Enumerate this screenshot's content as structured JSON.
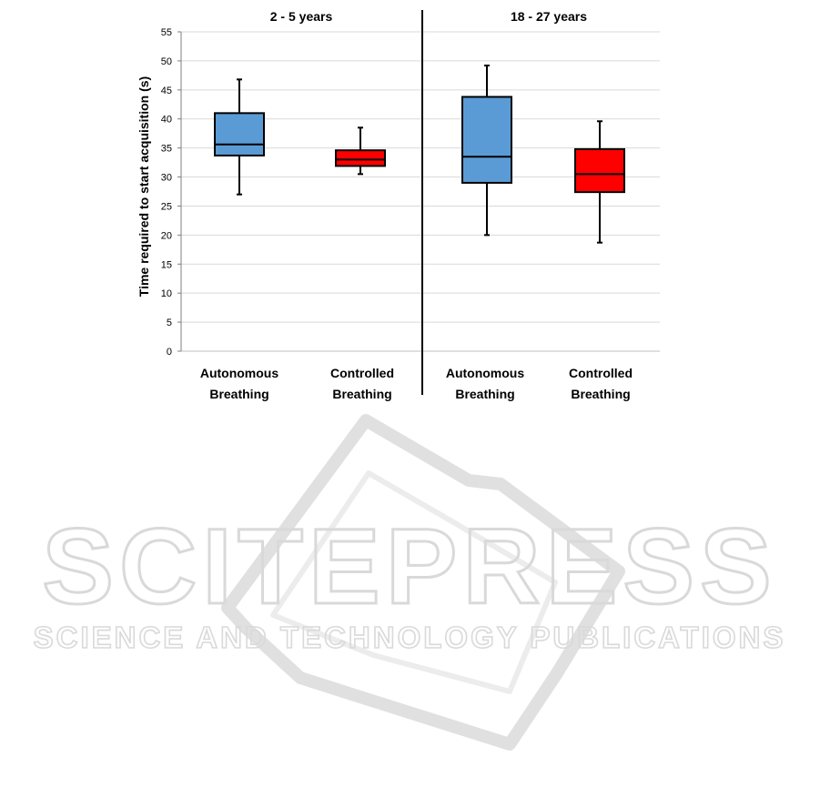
{
  "chart_data": {
    "type": "box",
    "ylabel": "Time required to start acquisition (s)",
    "xlabel": "",
    "ylim": [
      0,
      55
    ],
    "yticks": [
      0,
      5,
      10,
      15,
      20,
      25,
      30,
      35,
      40,
      45,
      50,
      55
    ],
    "grid": true,
    "groups": [
      {
        "title": "2 - 5 years",
        "boxes": [
          {
            "label_line1": "Autonomous",
            "label_line2": "Breathing",
            "color": "#5b9bd5",
            "min": 27.0,
            "q1": 33.7,
            "median": 35.6,
            "q3": 41.0,
            "max": 46.8
          },
          {
            "label_line1": "Controlled",
            "label_line2": "Breathing",
            "color": "#ff0000",
            "min": 30.5,
            "q1": 31.9,
            "median": 33.0,
            "q3": 34.6,
            "max": 38.5
          }
        ]
      },
      {
        "title": "18 - 27 years",
        "boxes": [
          {
            "label_line1": "Autonomous",
            "label_line2": "Breathing",
            "color": "#5b9bd5",
            "min": 20.0,
            "q1": 29.0,
            "median": 33.5,
            "q3": 43.8,
            "max": 49.2
          },
          {
            "label_line1": "Controlled",
            "label_line2": "Breathing",
            "color": "#ff0000",
            "min": 18.7,
            "q1": 27.4,
            "median": 30.5,
            "q3": 34.8,
            "max": 39.6
          }
        ]
      }
    ]
  },
  "watermark": {
    "line1": "SCITEPRESS",
    "line2": "SCIENCE AND TECHNOLOGY PUBLICATIONS"
  }
}
